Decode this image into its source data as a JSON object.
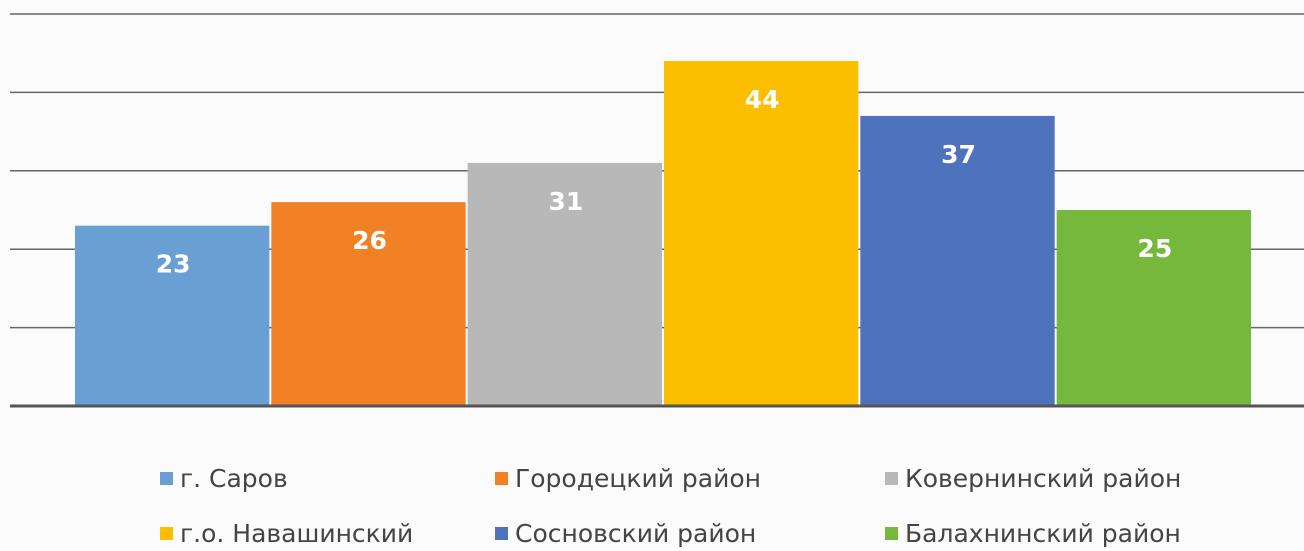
{
  "chart_data": {
    "type": "bar",
    "series": [
      {
        "name": "г. Саров",
        "color": "#6a9fd4",
        "values": [
          23
        ]
      },
      {
        "name": "Городецкий район",
        "color": "#f28025",
        "values": [
          26
        ]
      },
      {
        "name": "Ковернинский район",
        "color": "#b8b8b8",
        "values": [
          31
        ]
      },
      {
        "name": "г.о. Навашинский",
        "color": "#fbbf00",
        "values": [
          44
        ]
      },
      {
        "name": "Сосновский район",
        "color": "#4e73bc",
        "values": [
          37
        ]
      },
      {
        "name": "Балахнинский район",
        "color": "#76b83c",
        "values": [
          25
        ]
      }
    ],
    "ylim": [
      0,
      50
    ],
    "yticks": [
      0,
      10,
      20,
      30,
      40,
      50
    ],
    "grid": true,
    "legend": "bottom"
  }
}
